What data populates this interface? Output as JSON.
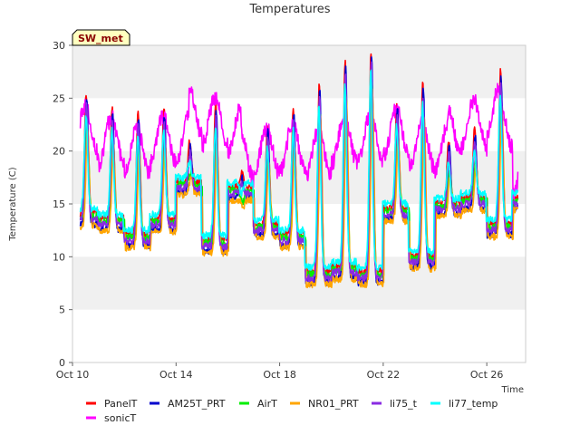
{
  "chart_data": {
    "type": "line",
    "title": "Temperatures",
    "badge": "SW_met",
    "xlabel": "Time",
    "ylabel": "Temperature (C)",
    "ylim": [
      0,
      30
    ],
    "yticks": [
      0,
      5,
      10,
      15,
      20,
      25,
      30
    ],
    "xlim_days": [
      10,
      27.5
    ],
    "xticks": [
      {
        "day": 10,
        "label": "Oct 10"
      },
      {
        "day": 14,
        "label": "Oct 14"
      },
      {
        "day": 18,
        "label": "Oct 18"
      },
      {
        "day": 22,
        "label": "Oct 22"
      },
      {
        "day": 26,
        "label": "Oct 26"
      }
    ],
    "grid": "horizontal bands",
    "legend_position": "bottom",
    "data_range_days": [
      10.3,
      27.2
    ],
    "daily_extremes": {
      "days": [
        "Oct 10",
        "Oct 11",
        "Oct 12",
        "Oct 13",
        "Oct 14",
        "Oct 15",
        "Oct 16",
        "Oct 17",
        "Oct 18",
        "Oct 19",
        "Oct 20",
        "Oct 21",
        "Oct 22",
        "Oct 23",
        "Oct 24",
        "Oct 25",
        "Oct 26",
        "Oct 27"
      ],
      "panel_max": [
        25.5,
        24.0,
        23.5,
        24.0,
        21.0,
        24.5,
        18.0,
        22.5,
        24.0,
        26.5,
        28.5,
        29.5,
        24.5,
        26.5,
        21.0,
        22.0,
        27.5,
        16.0
      ],
      "airt_min": [
        13.5,
        13.0,
        11.5,
        13.0,
        16.5,
        11.0,
        16.0,
        12.5,
        11.5,
        8.0,
        8.5,
        8.0,
        14.0,
        9.5,
        14.5,
        15.0,
        12.5,
        15.0
      ]
    },
    "series": [
      {
        "name": "PanelT",
        "color": "#ff0000"
      },
      {
        "name": "sonicT",
        "color": "#ff00ff"
      },
      {
        "name": "AM25T_PRT",
        "color": "#0000cc"
      },
      {
        "name": "AirT",
        "color": "#00ee00"
      },
      {
        "name": "NR01_PRT",
        "color": "#ffa500"
      },
      {
        "name": "li75_t",
        "color": "#8a2be2"
      },
      {
        "name": "li77_temp",
        "color": "#00ffff"
      }
    ]
  }
}
